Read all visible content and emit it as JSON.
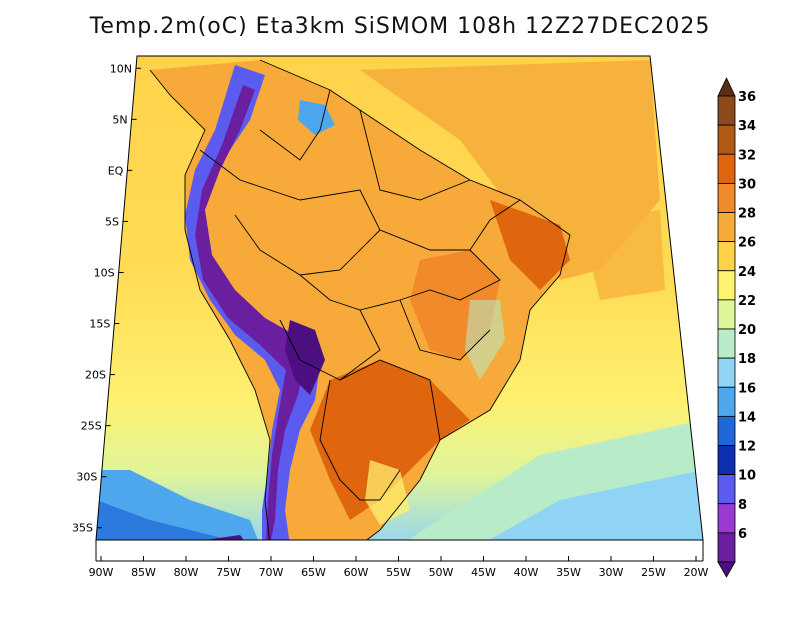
{
  "title": "Temp.2m(oC) Eta3km SiSMOM 108h 12Z27DEC2025",
  "map": {
    "variable": "2 m air temperature",
    "units": "oC",
    "model": "Eta3km",
    "run": "SiSMOM",
    "forecast_hour": "108h",
    "valid_time": "12Z27DEC2025",
    "extent": {
      "lon_min": -90,
      "lon_max": -20,
      "lat_min": -38,
      "lat_max": 12
    }
  },
  "axes": {
    "x_ticks": [
      {
        "value": -90,
        "label": "90W"
      },
      {
        "value": -85,
        "label": "85W"
      },
      {
        "value": -80,
        "label": "80W"
      },
      {
        "value": -75,
        "label": "75W"
      },
      {
        "value": -70,
        "label": "70W"
      },
      {
        "value": -65,
        "label": "65W"
      },
      {
        "value": -60,
        "label": "60W"
      },
      {
        "value": -55,
        "label": "55W"
      },
      {
        "value": -50,
        "label": "50W"
      },
      {
        "value": -45,
        "label": "45W"
      },
      {
        "value": -40,
        "label": "40W"
      },
      {
        "value": -35,
        "label": "35W"
      },
      {
        "value": -30,
        "label": "30W"
      },
      {
        "value": -25,
        "label": "25W"
      },
      {
        "value": -20,
        "label": "20W"
      }
    ],
    "y_ticks": [
      {
        "value": 10,
        "label": "10N"
      },
      {
        "value": 5,
        "label": "5N"
      },
      {
        "value": 0,
        "label": "EQ"
      },
      {
        "value": -5,
        "label": "5S"
      },
      {
        "value": -10,
        "label": "10S"
      },
      {
        "value": -15,
        "label": "15S"
      },
      {
        "value": -20,
        "label": "20S"
      },
      {
        "value": -25,
        "label": "25S"
      },
      {
        "value": -30,
        "label": "30S"
      },
      {
        "value": -35,
        "label": "35S"
      }
    ]
  },
  "colorbar": {
    "levels": [
      {
        "label": "36",
        "color": "#8a4a1c"
      },
      {
        "label": "34",
        "color": "#b05a16"
      },
      {
        "label": "32",
        "color": "#e0650f"
      },
      {
        "label": "30",
        "color": "#f08a2a"
      },
      {
        "label": "28",
        "color": "#f7aa3a"
      },
      {
        "label": "26",
        "color": "#ffd24a"
      },
      {
        "label": "24",
        "color": "#fff26e"
      },
      {
        "label": "22",
        "color": "#dff59a"
      },
      {
        "label": "20",
        "color": "#b8ecc8"
      },
      {
        "label": "18",
        "color": "#8fd4f5"
      },
      {
        "label": "16",
        "color": "#4ea6ec"
      },
      {
        "label": "14",
        "color": "#1e68d8"
      },
      {
        "label": "12",
        "color": "#0f2fb0"
      },
      {
        "label": "10",
        "color": "#5b5bf0"
      },
      {
        "label": "8",
        "color": "#9a3ad0"
      },
      {
        "label": "6",
        "color": "#6a1fa0"
      }
    ],
    "top_cap_color": "#5a2e10",
    "bottom_cap_color": "#4b0f80"
  },
  "colors": {
    "ocean_warm": "#f7b13d",
    "ocean_mid": "#ffd24a",
    "ocean_cool": "#fff26e",
    "land_hot": "#e0650f",
    "land_warm": "#f08a2a",
    "andes": "#6a1fa0",
    "south_cold": "#4ea6ec"
  }
}
